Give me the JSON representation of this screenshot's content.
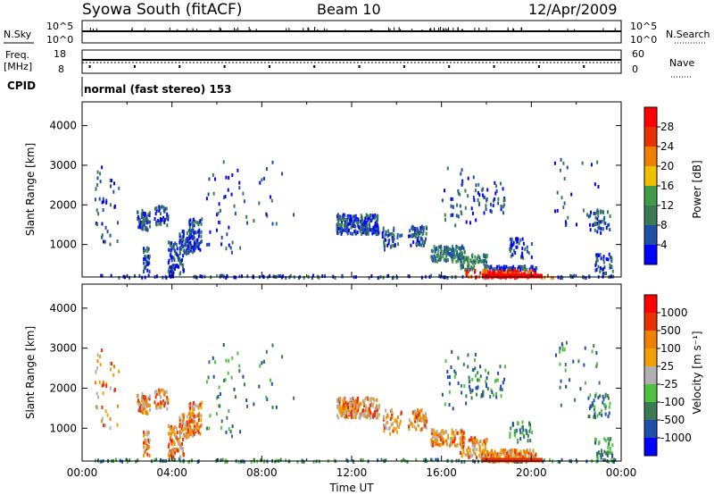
{
  "header": {
    "station": "Syowa South (fitACF)",
    "beam": "Beam 10",
    "date": "12/Apr/2009"
  },
  "top_panels": {
    "nsky_label": "N.Sky",
    "nsky_tick_hi": "10^5",
    "nsky_tick_lo": "10^0",
    "nsearch_label": "N.Search",
    "freq_label_1": "Freq.",
    "freq_label_2": "[MHz]",
    "freq_tick_hi": "18",
    "freq_tick_lo": "8",
    "nave_tick_hi": "60",
    "nave_tick_lo": "0",
    "nave_label": "Nave",
    "cpid_label": "CPID",
    "cpid_text": "normal (fast stereo) 153"
  },
  "colors": {
    "power": [
      "#0000ff",
      "#1f4ea8",
      "#3a7a52",
      "#3f9a4a",
      "#f0c000",
      "#f08000",
      "#e83000",
      "#ff0000"
    ],
    "velocity": [
      "#ff0000",
      "#e83000",
      "#f08000",
      "#f0a000",
      "#b0b0b0",
      "#50c040",
      "#3a7a52",
      "#1f4ea8",
      "#0000ff"
    ]
  },
  "chart_data": [
    {
      "type": "heatmap",
      "name": "power",
      "xlabel": "",
      "ylabel": "Slant Range [km]",
      "x_ticks": [
        "00:00",
        "04:00",
        "08:00",
        "12:00",
        "16:00",
        "20:00",
        "00:00"
      ],
      "y_ticks": [
        "1000",
        "2000",
        "3000",
        "4000"
      ],
      "ylim": [
        180,
        4600
      ],
      "colorbar_label": "Power [dB]",
      "colorbar_ticks": [
        "4",
        "8",
        "12",
        "16",
        "20",
        "24",
        "28"
      ],
      "features": [
        {
          "time_h": [
            2.5,
            5.5
          ],
          "range_km": [
            300,
            1900
          ],
          "level": "low"
        },
        {
          "time_h": [
            11.5,
            13.0
          ],
          "range_km": [
            1300,
            1800
          ],
          "level": "low"
        },
        {
          "time_h": [
            16.0,
            17.5
          ],
          "range_km": [
            600,
            1200
          ],
          "level": "mid"
        },
        {
          "time_h": [
            17.5,
            20.5
          ],
          "range_km": [
            200,
            400
          ],
          "level": "high"
        }
      ]
    },
    {
      "type": "heatmap",
      "name": "velocity",
      "xlabel": "Time UT",
      "ylabel": "Slant Range [km]",
      "x_ticks": [
        "00:00",
        "04:00",
        "08:00",
        "12:00",
        "16:00",
        "20:00",
        "00:00"
      ],
      "y_ticks": [
        "1000",
        "2000",
        "3000",
        "4000"
      ],
      "ylim": [
        180,
        4600
      ],
      "colorbar_label": "Velocity [m s⁻¹]",
      "colorbar_ticks": [
        "1000",
        "500",
        "100",
        "25",
        "-25",
        "-100",
        "-500",
        "-1000"
      ]
    }
  ]
}
